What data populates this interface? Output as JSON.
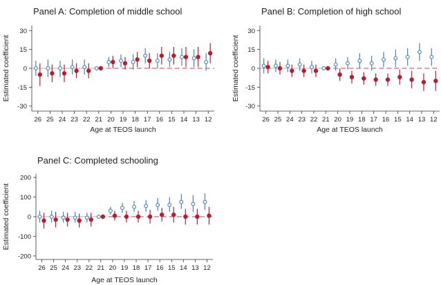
{
  "chart_data": [
    {
      "type": "scatter",
      "title": "Panel A: Completion of middle school",
      "xlabel": "Age at TEOS launch",
      "ylabel": "Estimated coefficient",
      "categories": [
        "26",
        "25",
        "24",
        "23",
        "22",
        "21",
        "20",
        "19",
        "18",
        "17",
        "16",
        "15",
        "14",
        "13",
        "12"
      ],
      "yticks": [
        30,
        15,
        0,
        -15,
        -30
      ],
      "ylim": [
        -34,
        34
      ],
      "reference_line": 0,
      "series": [
        {
          "color": "#4a7fb5",
          "marker": "hollow-circle",
          "values": [
            0,
            0,
            0,
            1,
            1,
            0,
            5,
            6,
            5,
            10,
            6,
            7,
            9,
            8,
            5
          ],
          "ci_low": [
            -6,
            -7,
            -7,
            -5,
            -5,
            null,
            1,
            1,
            -1,
            4,
            0,
            1,
            2,
            1,
            -2
          ],
          "ci_high": [
            6,
            7,
            6,
            7,
            7,
            null,
            9,
            11,
            11,
            16,
            12,
            13,
            16,
            15,
            12
          ]
        },
        {
          "color": "#b81d2e",
          "marker": "filled-circle",
          "values": [
            -5,
            -4,
            -4,
            -2,
            -2,
            0,
            5,
            4,
            7,
            6,
            10,
            10,
            9,
            9,
            12
          ],
          "ci_low": [
            -14,
            -11,
            -11,
            -8,
            -8,
            null,
            0,
            -1,
            1,
            0,
            3,
            3,
            1,
            1,
            4
          ],
          "ci_high": [
            4,
            3,
            3,
            4,
            4,
            null,
            10,
            9,
            13,
            12,
            17,
            17,
            17,
            17,
            20
          ]
        }
      ]
    },
    {
      "type": "scatter",
      "title": "Panel B: Completion of high school",
      "xlabel": "Age at TEOS launch",
      "ylabel": "Estimated coefficient",
      "categories": [
        "26",
        "25",
        "24",
        "23",
        "22",
        "21",
        "20",
        "19",
        "18",
        "17",
        "16",
        "15",
        "14",
        "13",
        "12"
      ],
      "yticks": [
        30,
        15,
        0,
        -15,
        -30
      ],
      "ylim": [
        -34,
        34
      ],
      "reference_line": 0,
      "series": [
        {
          "color": "#4a7fb5",
          "marker": "hollow-circle",
          "values": [
            2,
            2,
            2,
            3,
            1,
            0,
            3,
            4,
            6,
            4,
            7,
            8,
            9,
            13,
            9
          ],
          "ci_low": [
            -4,
            -3,
            -3,
            -2,
            -4,
            null,
            -2,
            -1,
            0,
            -2,
            1,
            1,
            2,
            6,
            2
          ],
          "ci_high": [
            8,
            7,
            7,
            8,
            6,
            null,
            8,
            9,
            12,
            10,
            13,
            15,
            16,
            20,
            16
          ]
        },
        {
          "color": "#b81d2e",
          "marker": "filled-circle",
          "values": [
            1,
            0,
            -2,
            -2,
            -2,
            0,
            -5,
            -7,
            -8,
            -9,
            -9,
            -7,
            -9,
            -11,
            -10
          ],
          "ci_low": [
            -4,
            -5,
            -7,
            -7,
            -7,
            null,
            -10,
            -12,
            -13,
            -14,
            -14,
            -13,
            -16,
            -18,
            -18
          ],
          "ci_high": [
            6,
            5,
            3,
            3,
            3,
            null,
            0,
            -2,
            -3,
            -4,
            -4,
            -1,
            -2,
            -4,
            -2
          ]
        }
      ]
    },
    {
      "type": "scatter",
      "title": "Panel C: Completed schooling",
      "xlabel": "Age at TEOS launch",
      "ylabel": "Estimated coefficient",
      "categories": [
        "26",
        "25",
        "24",
        "23",
        "22",
        "21",
        "20",
        "19",
        "18",
        "17",
        "16",
        "15",
        "14",
        "13",
        "12"
      ],
      "yticks": [
        200,
        100,
        0,
        -100,
        -200
      ],
      "ylim": [
        -218,
        218
      ],
      "reference_line": 0,
      "series": [
        {
          "color": "#4a7fb5",
          "marker": "hollow-circle",
          "values": [
            0,
            0,
            -5,
            -5,
            -5,
            0,
            30,
            45,
            50,
            55,
            60,
            60,
            75,
            65,
            75
          ],
          "ci_low": [
            -30,
            -30,
            -30,
            -30,
            -30,
            null,
            10,
            20,
            25,
            25,
            30,
            25,
            40,
            25,
            35
          ],
          "ci_high": [
            30,
            30,
            25,
            25,
            20,
            null,
            50,
            70,
            80,
            85,
            95,
            100,
            115,
            110,
            120
          ]
        },
        {
          "color": "#b81d2e",
          "marker": "filled-circle",
          "values": [
            -20,
            -15,
            -15,
            -20,
            -15,
            0,
            5,
            0,
            0,
            0,
            10,
            10,
            0,
            0,
            5
          ],
          "ci_low": [
            -60,
            -55,
            -50,
            -55,
            -50,
            null,
            -20,
            -30,
            -30,
            -35,
            -25,
            -30,
            -40,
            -40,
            -40
          ],
          "ci_high": [
            20,
            25,
            20,
            15,
            20,
            null,
            30,
            30,
            30,
            35,
            45,
            50,
            40,
            40,
            50
          ]
        }
      ]
    }
  ]
}
